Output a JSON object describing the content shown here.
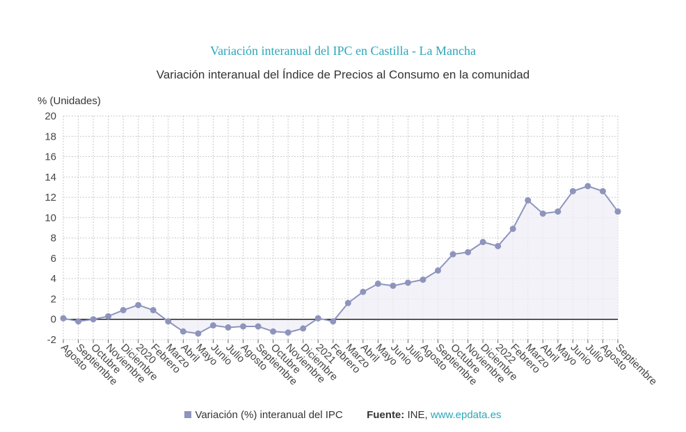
{
  "colors": {
    "title": "#2aa7b8",
    "series": "#8e94bc",
    "area": "#ededf5",
    "grid": "#c9c9c9",
    "zero_line": "#222222",
    "link": "#2aa7b8"
  },
  "chart_data": {
    "type": "area",
    "title": "Variación interanual del IPC en Castilla - La Mancha",
    "subtitle": "Variación interanual del Índice de Precios al Consumo en la comunidad",
    "ylabel": "% (Unidades)",
    "xlabel": "",
    "ylim": [
      -2,
      20
    ],
    "yticks": [
      "20",
      "18",
      "16",
      "14",
      "12",
      "10",
      "8",
      "6",
      "4",
      "2",
      "0",
      "-2"
    ],
    "grid": true,
    "legend_position": "bottom",
    "categories": [
      "Agosto",
      "Septiembre",
      "Octubre",
      "Noviembre",
      "Diciembre",
      "2020",
      "Febrero",
      "Marzo",
      "Abril",
      "Mayo",
      "Junio",
      "Julio",
      "Agosto",
      "Septiembre",
      "Octubre",
      "Noviembre",
      "Diciembre",
      "2021",
      "Febrero",
      "Marzo",
      "Abril",
      "Mayo",
      "Junio",
      "Julio",
      "Agosto",
      "Septiembre",
      "Octubre",
      "Noviembre",
      "Diciembre",
      "2022",
      "Febrero",
      "Marzo",
      "Abril",
      "Mayo",
      "Junio",
      "Julio",
      "Agosto",
      "Septiembre"
    ],
    "series": [
      {
        "name": "Variación (%) interanual del IPC",
        "values": [
          0.1,
          -0.2,
          0.0,
          0.3,
          0.9,
          1.4,
          0.9,
          -0.2,
          -1.2,
          -1.4,
          -0.6,
          -0.8,
          -0.7,
          -0.7,
          -1.2,
          -1.3,
          -0.9,
          0.1,
          -0.2,
          1.6,
          2.7,
          3.5,
          3.3,
          3.6,
          3.9,
          4.8,
          6.4,
          6.6,
          7.6,
          7.2,
          8.9,
          11.7,
          10.4,
          10.6,
          12.6,
          13.1,
          12.6,
          10.6
        ]
      }
    ]
  },
  "legend": {
    "series_label": "Variación (%) interanual del IPC",
    "source_label": "Fuente:",
    "source_text": "INE,",
    "source_link": "www.epdata.es"
  }
}
